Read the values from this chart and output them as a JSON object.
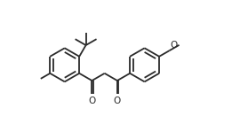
{
  "background_color": "#ffffff",
  "line_color": "#2a2a2a",
  "line_width": 1.3,
  "fig_width": 2.7,
  "fig_height": 1.57,
  "dpi": 100,
  "xlim": [
    0,
    14
  ],
  "ylim": [
    0,
    9
  ]
}
